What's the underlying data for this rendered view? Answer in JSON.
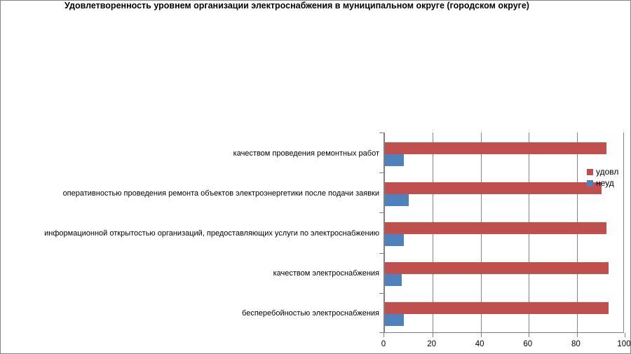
{
  "window": {
    "background": "#FFFFFF",
    "border_color": "#848484"
  },
  "chart_data": {
    "type": "bar",
    "orientation": "horizontal",
    "title": "Удовлетворенность уровнем организации электроснабжения в муниципальном округе (городском округе)",
    "categories": [
      "качеством проведения ремонтных работ",
      "оперативностью проведения ремонта объектов электроэнергетики после подачи заявки",
      "информационной открытостью организаций, предоставляющих услуги по электроснабжению",
      "качеством электроснабжения",
      "бесперебойностью электроснабжения"
    ],
    "series": [
      {
        "name": "удовл",
        "color": "#C0504D",
        "values": [
          92,
          90,
          92,
          93,
          93
        ]
      },
      {
        "name": "неуд",
        "color": "#4F81BD",
        "values": [
          8,
          10,
          8,
          7,
          8
        ]
      }
    ],
    "xlim": [
      0,
      100
    ],
    "x_ticks": [
      0,
      20,
      40,
      60,
      80,
      100
    ],
    "grid": "vertical-major",
    "gridline_color": "#848484",
    "axis_color": "#808080",
    "legend_position": "inside-right",
    "legend_entries": [
      "удовл",
      "неуд"
    ]
  }
}
